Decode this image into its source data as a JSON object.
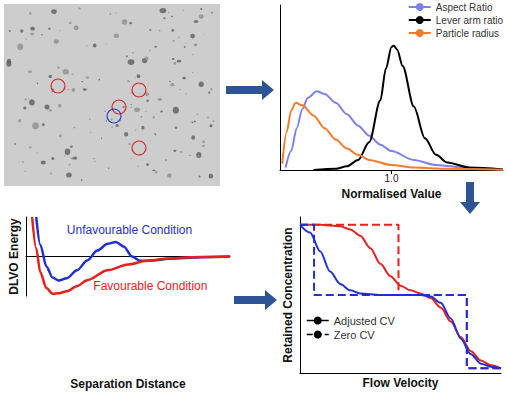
{
  "chart_data": [
    {
      "type": "line",
      "x_label": "Normalised Value",
      "xlim": [
        0,
        2
      ],
      "xticks": [
        {
          "value": 1,
          "label": "1.0"
        }
      ],
      "ylim": [
        0,
        1.3
      ],
      "tick_labels": "x",
      "grid": false,
      "legend": "upper right",
      "series": [
        {
          "name": "Aspect Ratio",
          "color": "#7b83eb",
          "x": [
            0.05,
            0.1,
            0.15,
            0.2,
            0.25,
            0.33,
            0.4,
            0.5,
            0.6,
            0.7,
            0.8,
            0.9,
            1.0,
            1.2,
            1.4,
            1.7,
            2.0
          ],
          "values": [
            0.02,
            0.15,
            0.33,
            0.48,
            0.57,
            0.62,
            0.6,
            0.53,
            0.44,
            0.35,
            0.27,
            0.2,
            0.15,
            0.08,
            0.04,
            0.015,
            0.005
          ]
        },
        {
          "name": "Lever arm ratio",
          "color": "#000000",
          "x": [
            0.3,
            0.5,
            0.6,
            0.7,
            0.8,
            0.9,
            0.95,
            1.0,
            1.02,
            1.05,
            1.1,
            1.2,
            1.3,
            1.4,
            1.5,
            1.7,
            2.0
          ],
          "values": [
            0,
            0.01,
            0.03,
            0.08,
            0.22,
            0.55,
            0.8,
            0.97,
            0.98,
            0.95,
            0.82,
            0.5,
            0.25,
            0.12,
            0.06,
            0.02,
            0.005
          ]
        },
        {
          "name": "Particle radius",
          "color": "#f47b2c",
          "x": [
            0.02,
            0.06,
            0.1,
            0.14,
            0.2,
            0.3,
            0.4,
            0.5,
            0.6,
            0.7,
            0.8,
            1.0,
            1.2,
            1.5,
            2.0
          ],
          "values": [
            0.05,
            0.3,
            0.47,
            0.53,
            0.51,
            0.43,
            0.33,
            0.24,
            0.17,
            0.12,
            0.08,
            0.04,
            0.02,
            0.01,
            0.003
          ]
        }
      ]
    },
    {
      "type": "line",
      "x_label": "Separation Distance",
      "y_label": "DLVO Energy",
      "xlim": [
        0,
        10
      ],
      "ylim": [
        -10,
        10
      ],
      "tick_labels": false,
      "grid": false,
      "series": [
        {
          "name": "Unfavourable Condition",
          "color": "#1f2fd6",
          "x": [
            0.5,
            0.7,
            1.0,
            1.3,
            1.6,
            2.0,
            2.5,
            3.0,
            3.5,
            4.0,
            4.4,
            4.8,
            5.2,
            5.6,
            6.2,
            7,
            8,
            9,
            10
          ],
          "values": [
            10,
            3,
            -2.5,
            -5.3,
            -6.1,
            -5.5,
            -3.5,
            -1,
            1.5,
            3.2,
            3.7,
            2.5,
            0,
            -1.1,
            -1,
            -0.6,
            -0.3,
            -0.1,
            0
          ]
        },
        {
          "name": "Favourable Condition",
          "color": "#e8201c",
          "x": [
            0.3,
            0.5,
            0.7,
            1.0,
            1.3,
            1.6,
            2,
            2.5,
            3,
            4,
            5,
            6,
            7,
            8,
            9,
            10
          ],
          "values": [
            10,
            2,
            -4,
            -8,
            -9.4,
            -9.3,
            -8.8,
            -7.5,
            -6,
            -3.5,
            -2,
            -1,
            -0.5,
            -0.2,
            -0.1,
            0
          ]
        }
      ]
    },
    {
      "type": "line",
      "x_label": "Flow Velocity",
      "y_label": "Retained Concentration",
      "xlim": [
        0,
        10
      ],
      "ylim": [
        0,
        1
      ],
      "tick_labels": false,
      "grid": false,
      "legend": "lower left",
      "series": [
        {
          "name": "Adjusted CV",
          "color": "#e8201c",
          "line_style": "solid",
          "x": [
            0,
            1,
            2,
            2.5,
            3,
            3.5,
            4,
            4.5,
            5,
            5.5,
            6,
            6.5,
            7,
            7.5,
            8,
            8.5,
            9,
            9.5,
            10
          ],
          "values": [
            0.95,
            0.95,
            0.94,
            0.92,
            0.88,
            0.8,
            0.7,
            0.62,
            0.56,
            0.53,
            0.51,
            0.48,
            0.42,
            0.33,
            0.23,
            0.14,
            0.08,
            0.05,
            0.03
          ]
        },
        {
          "name": "Zero CV",
          "color": "#e8201c",
          "line_style": "dashed",
          "x": [
            0,
            4.9,
            4.9,
            8.3,
            8.3,
            10
          ],
          "values": [
            0.95,
            0.95,
            0.5,
            0.5,
            0.03,
            0.03
          ]
        },
        {
          "name": "Adjusted CV",
          "color": "#1f2fd6",
          "line_style": "solid",
          "x": [
            0,
            0.5,
            1,
            1.5,
            2,
            2.5,
            3,
            4,
            5,
            6,
            6.5,
            7,
            7.5,
            8,
            8.5,
            9,
            9.5,
            10
          ],
          "values": [
            0.95,
            0.9,
            0.78,
            0.65,
            0.57,
            0.53,
            0.51,
            0.5,
            0.5,
            0.5,
            0.49,
            0.45,
            0.35,
            0.22,
            0.12,
            0.06,
            0.04,
            0.03
          ]
        },
        {
          "name": "Zero CV",
          "color": "#1f2fd6",
          "line_style": "dashed",
          "x": [
            0,
            0.7,
            0.7,
            8.3,
            8.3,
            10
          ],
          "values": [
            0.95,
            0.95,
            0.5,
            0.5,
            0.03,
            0.03
          ]
        }
      ]
    }
  ]
}
